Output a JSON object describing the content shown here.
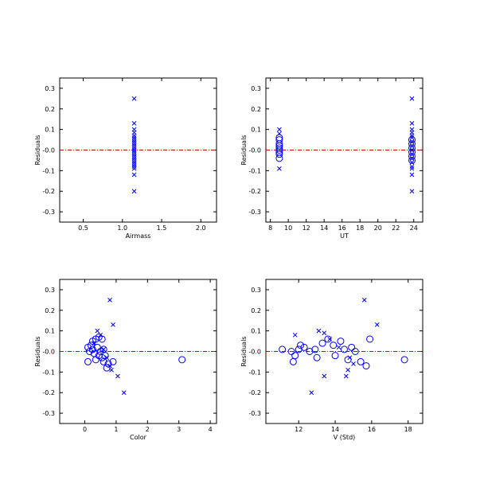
{
  "colors": {
    "marker": "#0000ff",
    "zero_line": "#cc0000",
    "axes": "#000000"
  },
  "chart_data": [
    {
      "type": "scatter",
      "title": "",
      "xlabel": "Airmass",
      "ylabel": "Residuals",
      "xlim": [
        0.2,
        2.2
      ],
      "ylim": [
        -0.35,
        0.35
      ],
      "xticks": [
        0.5,
        1.0,
        1.5,
        2.0
      ],
      "xtick_labels": [
        "0.5",
        "1.0",
        "1.5",
        "2.0"
      ],
      "yticks": [
        -0.3,
        -0.2,
        -0.1,
        0.0,
        0.1,
        0.2,
        0.3
      ],
      "ytick_labels": [
        "-0.3",
        "-0.2",
        "-0.1",
        "-0.0",
        "0.1",
        "0.2",
        "0.3"
      ],
      "reference_line_y": 0.0,
      "grid": false,
      "series": [
        {
          "marker": "cross",
          "points": [
            [
              1.15,
              0.25
            ],
            [
              1.15,
              0.13
            ],
            [
              1.15,
              0.1
            ],
            [
              1.15,
              0.085
            ],
            [
              1.15,
              0.07
            ],
            [
              1.15,
              0.06
            ],
            [
              1.15,
              0.05
            ],
            [
              1.15,
              0.04
            ],
            [
              1.15,
              0.03
            ],
            [
              1.15,
              0.02
            ],
            [
              1.15,
              0.01
            ],
            [
              1.15,
              0.0
            ],
            [
              1.15,
              -0.01
            ],
            [
              1.15,
              -0.02
            ],
            [
              1.15,
              -0.03
            ],
            [
              1.15,
              -0.04
            ],
            [
              1.15,
              -0.05
            ],
            [
              1.15,
              -0.06
            ],
            [
              1.15,
              -0.07
            ],
            [
              1.15,
              -0.08
            ],
            [
              1.15,
              -0.09
            ],
            [
              1.15,
              -0.12
            ],
            [
              1.15,
              -0.2
            ]
          ]
        }
      ]
    },
    {
      "type": "scatter",
      "title": "",
      "xlabel": "UT",
      "ylabel": "Residuals",
      "xlim": [
        7.5,
        25.0
      ],
      "ylim": [
        -0.35,
        0.35
      ],
      "xticks": [
        8,
        10,
        12,
        14,
        16,
        18,
        20,
        22,
        24
      ],
      "xtick_labels": [
        "8",
        "10",
        "12",
        "14",
        "16",
        "18",
        "20",
        "22",
        "24"
      ],
      "yticks": [
        -0.3,
        -0.2,
        -0.1,
        0.0,
        0.1,
        0.2,
        0.3
      ],
      "ytick_labels": [
        "-0.3",
        "-0.2",
        "-0.1",
        "-0.0",
        "0.1",
        "0.2",
        "0.3"
      ],
      "reference_line_y": 0.0,
      "grid": false,
      "series": [
        {
          "marker": "cross",
          "points": [
            [
              9.0,
              0.1
            ],
            [
              9.0,
              0.08
            ],
            [
              9.0,
              -0.09
            ],
            [
              23.8,
              0.25
            ],
            [
              23.8,
              0.13
            ],
            [
              23.8,
              0.1
            ],
            [
              23.8,
              0.085
            ],
            [
              23.8,
              0.07
            ],
            [
              23.8,
              0.06
            ],
            [
              23.8,
              0.04
            ],
            [
              23.8,
              0.02
            ],
            [
              23.8,
              0.0
            ],
            [
              23.8,
              -0.02
            ],
            [
              23.8,
              -0.04
            ],
            [
              23.8,
              -0.06
            ],
            [
              23.8,
              -0.08
            ],
            [
              23.8,
              -0.09
            ],
            [
              23.8,
              -0.12
            ],
            [
              23.8,
              -0.2
            ]
          ]
        },
        {
          "marker": "circle",
          "points": [
            [
              9.0,
              0.06
            ],
            [
              9.0,
              0.05
            ],
            [
              9.0,
              0.03
            ],
            [
              9.0,
              0.02
            ],
            [
              9.0,
              0.01
            ],
            [
              9.0,
              0.0
            ],
            [
              9.0,
              -0.01
            ],
            [
              9.0,
              -0.02
            ],
            [
              9.0,
              -0.04
            ],
            [
              23.8,
              0.05
            ],
            [
              23.8,
              0.03
            ],
            [
              23.8,
              0.01
            ],
            [
              23.8,
              -0.01
            ],
            [
              23.8,
              -0.03
            ],
            [
              23.8,
              -0.05
            ]
          ]
        }
      ]
    },
    {
      "type": "scatter",
      "title": "",
      "xlabel": "Color",
      "ylabel": "Residuals",
      "xlim": [
        -0.8,
        4.2
      ],
      "ylim": [
        -0.35,
        0.35
      ],
      "xticks": [
        0,
        1,
        2,
        3,
        4
      ],
      "xtick_labels": [
        "0",
        "1",
        "2",
        "3",
        "4"
      ],
      "yticks": [
        -0.3,
        -0.2,
        -0.1,
        0.0,
        0.1,
        0.2,
        0.3
      ],
      "ytick_labels": [
        "-0.3",
        "-0.2",
        "-0.1",
        "-0.0",
        "0.1",
        "0.2",
        "0.3"
      ],
      "reference_line_y": 0.0,
      "grid": false,
      "series": [
        {
          "marker": "cross",
          "points": [
            [
              0.8,
              0.25
            ],
            [
              0.9,
              0.13
            ],
            [
              0.4,
              0.1
            ],
            [
              0.5,
              0.08
            ],
            [
              0.3,
              0.04
            ],
            [
              0.6,
              0.01
            ],
            [
              0.7,
              -0.03
            ],
            [
              0.8,
              -0.07
            ],
            [
              0.85,
              -0.09
            ],
            [
              1.05,
              -0.12
            ],
            [
              1.25,
              -0.2
            ]
          ]
        },
        {
          "marker": "circle",
          "points": [
            [
              0.1,
              0.02
            ],
            [
              0.2,
              0.03
            ],
            [
              0.25,
              0.05
            ],
            [
              0.35,
              0.06
            ],
            [
              0.45,
              0.07
            ],
            [
              0.55,
              0.06
            ],
            [
              0.15,
              0.0
            ],
            [
              0.25,
              0.01
            ],
            [
              0.4,
              0.02
            ],
            [
              0.5,
              0.0
            ],
            [
              0.6,
              0.01
            ],
            [
              0.3,
              -0.01
            ],
            [
              0.45,
              -0.02
            ],
            [
              0.55,
              -0.03
            ],
            [
              0.65,
              -0.02
            ],
            [
              0.1,
              -0.05
            ],
            [
              0.35,
              -0.04
            ],
            [
              0.6,
              -0.05
            ],
            [
              0.75,
              -0.06
            ],
            [
              0.9,
              -0.05
            ],
            [
              0.7,
              -0.08
            ],
            [
              3.1,
              -0.04
            ]
          ]
        }
      ]
    },
    {
      "type": "scatter",
      "title": "",
      "xlabel": "V (Std)",
      "ylabel": "Residuals",
      "xlim": [
        10.2,
        18.8
      ],
      "ylim": [
        -0.35,
        0.35
      ],
      "xticks": [
        12,
        14,
        16,
        18
      ],
      "xtick_labels": [
        "12",
        "14",
        "16",
        "18"
      ],
      "yticks": [
        -0.3,
        -0.2,
        -0.1,
        0.0,
        0.1,
        0.2,
        0.3
      ],
      "ytick_labels": [
        "-0.3",
        "-0.2",
        "-0.1",
        "-0.0",
        "0.1",
        "0.2",
        "0.3"
      ],
      "reference_line_y": 0.0,
      "grid": false,
      "series": [
        {
          "marker": "cross",
          "points": [
            [
              15.6,
              0.25
            ],
            [
              16.3,
              0.13
            ],
            [
              13.1,
              0.1
            ],
            [
              13.4,
              0.09
            ],
            [
              11.8,
              0.08
            ],
            [
              13.7,
              0.06
            ],
            [
              14.2,
              0.02
            ],
            [
              14.8,
              -0.03
            ],
            [
              15.0,
              -0.06
            ],
            [
              14.7,
              -0.09
            ],
            [
              13.4,
              -0.12
            ],
            [
              12.7,
              -0.2
            ],
            [
              14.6,
              -0.12
            ]
          ]
        },
        {
          "marker": "circle",
          "points": [
            [
              11.1,
              0.01
            ],
            [
              11.6,
              0.0
            ],
            [
              11.8,
              -0.02
            ],
            [
              12.0,
              0.01
            ],
            [
              12.3,
              0.02
            ],
            [
              12.6,
              0.0
            ],
            [
              12.9,
              0.01
            ],
            [
              13.0,
              -0.03
            ],
            [
              13.3,
              0.04
            ],
            [
              13.6,
              0.06
            ],
            [
              13.9,
              0.03
            ],
            [
              14.0,
              -0.02
            ],
            [
              14.3,
              0.05
            ],
            [
              14.5,
              0.01
            ],
            [
              14.7,
              -0.04
            ],
            [
              14.9,
              0.02
            ],
            [
              15.1,
              0.0
            ],
            [
              15.4,
              -0.05
            ],
            [
              15.7,
              -0.07
            ],
            [
              15.9,
              0.06
            ],
            [
              11.7,
              -0.05
            ],
            [
              12.1,
              0.03
            ],
            [
              17.8,
              -0.04
            ]
          ]
        }
      ]
    }
  ]
}
